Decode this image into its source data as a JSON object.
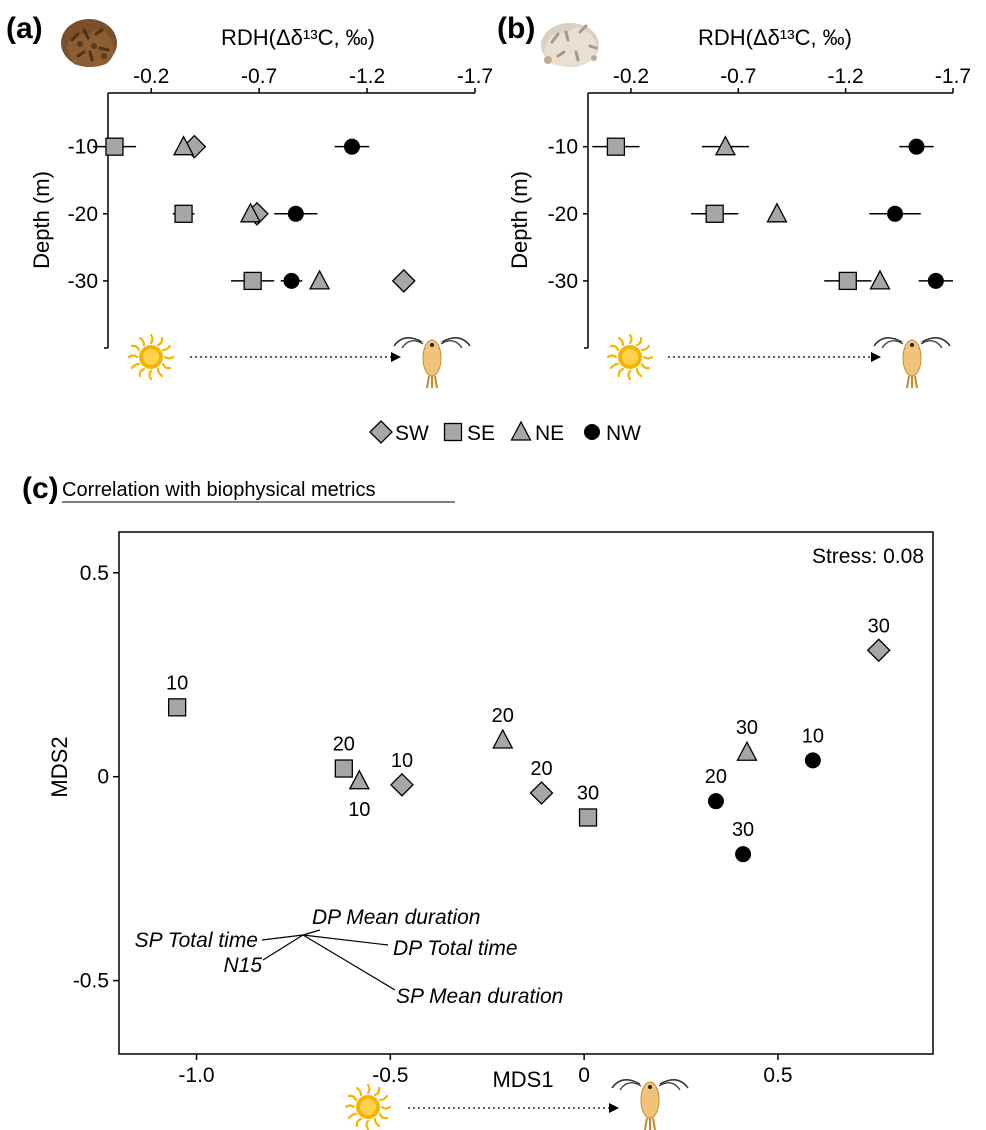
{
  "panels": {
    "a": {
      "letter": "(a)"
    },
    "b": {
      "letter": "(b)"
    },
    "c": {
      "letter": "(c)",
      "title": "Correlation with biophysical metrics"
    }
  },
  "legend": [
    {
      "label": "SW",
      "marker": "diamond"
    },
    {
      "label": "SE",
      "marker": "square"
    },
    {
      "label": "NE",
      "marker": "triangle"
    },
    {
      "label": "NW",
      "marker": "circle"
    }
  ],
  "colors": {
    "grey_marker": "#a6a6a6",
    "black_marker": "#000000",
    "sun": "#f5b400",
    "larva": "#f2c27a",
    "coral_a": "#7a4f2a",
    "coral_b": "#d9cfc2"
  },
  "icons": {
    "sun": "sun-icon",
    "larva": "larva-icon",
    "arrow": "dotted-arrow",
    "coral_a": "coral-icon",
    "coral_b": "coral-bleached-icon"
  },
  "chart_data": [
    {
      "type": "scatter",
      "panel": "a",
      "xlabel": "RDH(Δδ¹³C, ‰)",
      "ylabel": "Depth (m)",
      "x_reversed": true,
      "xlim": [
        0.0,
        -1.7
      ],
      "xticks": [
        -0.2,
        -0.7,
        -1.2,
        -1.7
      ],
      "xtick_labels": [
        "-0.2",
        "-0.7",
        "-1.2",
        "-1.7"
      ],
      "ylim": [
        -2,
        -40
      ],
      "yticks": [
        -10,
        -20,
        -30
      ],
      "ytick_labels": [
        "-10",
        "-20",
        "-30"
      ],
      "series": [
        {
          "name": "SW",
          "marker": "diamond",
          "points": [
            {
              "x": -0.4,
              "y": -10
            },
            {
              "x": -0.69,
              "y": -20
            },
            {
              "x": -1.37,
              "y": -30
            }
          ]
        },
        {
          "name": "SE",
          "marker": "square",
          "points": [
            {
              "x": -0.03,
              "y": -10,
              "xerr": 0.1
            },
            {
              "x": -0.35,
              "y": -20,
              "xerr": 0.05
            },
            {
              "x": -0.67,
              "y": -30,
              "xerr": 0.1
            }
          ]
        },
        {
          "name": "NE",
          "marker": "triangle",
          "points": [
            {
              "x": -0.35,
              "y": -10
            },
            {
              "x": -0.66,
              "y": -20
            },
            {
              "x": -0.98,
              "y": -30
            }
          ]
        },
        {
          "name": "NW",
          "marker": "circle",
          "points": [
            {
              "x": -1.13,
              "y": -10,
              "xerr": 0.08
            },
            {
              "x": -0.87,
              "y": -20,
              "xerr": 0.1
            },
            {
              "x": -0.85,
              "y": -30,
              "xerr": 0.05
            }
          ]
        }
      ]
    },
    {
      "type": "scatter",
      "panel": "b",
      "xlabel": "RDH(Δδ¹³C, ‰)",
      "ylabel": "Depth (m)",
      "x_reversed": true,
      "xlim": [
        0.0,
        -1.7
      ],
      "xticks": [
        -0.2,
        -0.7,
        -1.2,
        -1.7
      ],
      "xtick_labels": [
        "-0.2",
        "-0.7",
        "-1.2",
        "-1.7"
      ],
      "ylim": [
        -2,
        -40
      ],
      "yticks": [
        -10,
        -20,
        -30
      ],
      "ytick_labels": [
        "-10",
        "-20",
        "-30"
      ],
      "series": [
        {
          "name": "SE",
          "marker": "square",
          "points": [
            {
              "x": -0.13,
              "y": -10,
              "xerr": 0.11
            },
            {
              "x": -0.59,
              "y": -20,
              "xerr": 0.11
            },
            {
              "x": -1.21,
              "y": -30,
              "xerr": 0.11
            }
          ]
        },
        {
          "name": "NE",
          "marker": "triangle",
          "points": [
            {
              "x": -0.64,
              "y": -10,
              "xerr": 0.11
            },
            {
              "x": -0.88,
              "y": -20
            },
            {
              "x": -1.36,
              "y": -30
            }
          ]
        },
        {
          "name": "NW",
          "marker": "circle",
          "points": [
            {
              "x": -1.53,
              "y": -10,
              "xerr": 0.08
            },
            {
              "x": -1.43,
              "y": -20,
              "xerr": 0.12
            },
            {
              "x": -1.62,
              "y": -30,
              "xerr": 0.08
            }
          ]
        }
      ]
    },
    {
      "type": "scatter",
      "panel": "c",
      "xlabel": "MDS1",
      "ylabel": "MDS2",
      "xlim": [
        -1.2,
        0.9
      ],
      "ylim": [
        -0.68,
        0.6
      ],
      "xticks": [
        -1.0,
        -0.5,
        0,
        0.5
      ],
      "xtick_labels": [
        "-1.0",
        "-0.5",
        "0",
        "0.5"
      ],
      "yticks": [
        0.5,
        0,
        -0.5
      ],
      "ytick_labels": [
        "0.5",
        "0",
        "-0.5"
      ],
      "annotation": "Stress: 0.08",
      "grid": false,
      "series": [
        {
          "name": "SW",
          "marker": "diamond",
          "points": [
            {
              "x": -0.47,
              "y": -0.02,
              "label": "10"
            },
            {
              "x": -0.11,
              "y": -0.04,
              "label": "20"
            },
            {
              "x": 0.76,
              "y": 0.31,
              "label": "30"
            }
          ]
        },
        {
          "name": "SE",
          "marker": "square",
          "points": [
            {
              "x": -1.05,
              "y": 0.17,
              "label": "10"
            },
            {
              "x": -0.62,
              "y": 0.02,
              "label": "20"
            },
            {
              "x": 0.01,
              "y": -0.1,
              "label": "30"
            }
          ]
        },
        {
          "name": "NE",
          "marker": "triangle",
          "points": [
            {
              "x": -0.58,
              "y": -0.01,
              "label": "10"
            },
            {
              "x": -0.21,
              "y": 0.09,
              "label": "20"
            },
            {
              "x": 0.42,
              "y": 0.06,
              "label": "30"
            }
          ]
        },
        {
          "name": "NW",
          "marker": "circle",
          "points": [
            {
              "x": 0.59,
              "y": 0.04,
              "label": "10"
            },
            {
              "x": 0.34,
              "y": -0.06,
              "label": "20"
            },
            {
              "x": 0.41,
              "y": -0.19,
              "label": "30"
            }
          ]
        }
      ],
      "vectors": [
        {
          "label": "DP Mean duration"
        },
        {
          "label": "DP Total time"
        },
        {
          "label": "SP Total time"
        },
        {
          "label": "N15"
        },
        {
          "label": "SP Mean duration"
        }
      ]
    }
  ]
}
